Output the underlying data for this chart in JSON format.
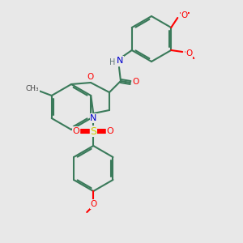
{
  "background_color": "#e8e8e8",
  "bond_color": "#3a7a5a",
  "atom_colors": {
    "O": "#ff0000",
    "N": "#0000cc",
    "S": "#cccc00",
    "H": "#607878",
    "C": "#000000"
  },
  "figsize": [
    3.0,
    3.0
  ],
  "dpi": 100
}
